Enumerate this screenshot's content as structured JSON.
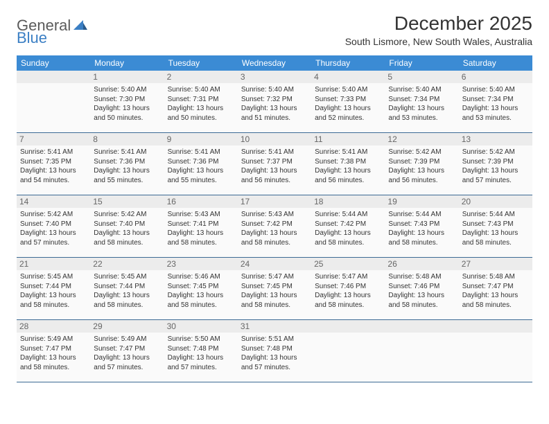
{
  "logo": {
    "word1": "General",
    "word2": "Blue"
  },
  "title": "December 2025",
  "subtitle": "South Lismore, New South Wales, Australia",
  "colors": {
    "header_bg": "#3b8bd4",
    "header_text": "#ffffff",
    "row_border": "#3b6a94",
    "daynum_bg": "#ececec",
    "daynum_text": "#666666",
    "logo_gray": "#5a5a5a",
    "logo_blue": "#3b7fc4"
  },
  "days_of_week": [
    "Sunday",
    "Monday",
    "Tuesday",
    "Wednesday",
    "Thursday",
    "Friday",
    "Saturday"
  ],
  "cells": [
    {
      "n": "",
      "sr": "",
      "ss": "",
      "dl": ""
    },
    {
      "n": "1",
      "sr": "Sunrise: 5:40 AM",
      "ss": "Sunset: 7:30 PM",
      "dl": "Daylight: 13 hours and 50 minutes."
    },
    {
      "n": "2",
      "sr": "Sunrise: 5:40 AM",
      "ss": "Sunset: 7:31 PM",
      "dl": "Daylight: 13 hours and 50 minutes."
    },
    {
      "n": "3",
      "sr": "Sunrise: 5:40 AM",
      "ss": "Sunset: 7:32 PM",
      "dl": "Daylight: 13 hours and 51 minutes."
    },
    {
      "n": "4",
      "sr": "Sunrise: 5:40 AM",
      "ss": "Sunset: 7:33 PM",
      "dl": "Daylight: 13 hours and 52 minutes."
    },
    {
      "n": "5",
      "sr": "Sunrise: 5:40 AM",
      "ss": "Sunset: 7:34 PM",
      "dl": "Daylight: 13 hours and 53 minutes."
    },
    {
      "n": "6",
      "sr": "Sunrise: 5:40 AM",
      "ss": "Sunset: 7:34 PM",
      "dl": "Daylight: 13 hours and 53 minutes."
    },
    {
      "n": "7",
      "sr": "Sunrise: 5:41 AM",
      "ss": "Sunset: 7:35 PM",
      "dl": "Daylight: 13 hours and 54 minutes."
    },
    {
      "n": "8",
      "sr": "Sunrise: 5:41 AM",
      "ss": "Sunset: 7:36 PM",
      "dl": "Daylight: 13 hours and 55 minutes."
    },
    {
      "n": "9",
      "sr": "Sunrise: 5:41 AM",
      "ss": "Sunset: 7:36 PM",
      "dl": "Daylight: 13 hours and 55 minutes."
    },
    {
      "n": "10",
      "sr": "Sunrise: 5:41 AM",
      "ss": "Sunset: 7:37 PM",
      "dl": "Daylight: 13 hours and 56 minutes."
    },
    {
      "n": "11",
      "sr": "Sunrise: 5:41 AM",
      "ss": "Sunset: 7:38 PM",
      "dl": "Daylight: 13 hours and 56 minutes."
    },
    {
      "n": "12",
      "sr": "Sunrise: 5:42 AM",
      "ss": "Sunset: 7:39 PM",
      "dl": "Daylight: 13 hours and 56 minutes."
    },
    {
      "n": "13",
      "sr": "Sunrise: 5:42 AM",
      "ss": "Sunset: 7:39 PM",
      "dl": "Daylight: 13 hours and 57 minutes."
    },
    {
      "n": "14",
      "sr": "Sunrise: 5:42 AM",
      "ss": "Sunset: 7:40 PM",
      "dl": "Daylight: 13 hours and 57 minutes."
    },
    {
      "n": "15",
      "sr": "Sunrise: 5:42 AM",
      "ss": "Sunset: 7:40 PM",
      "dl": "Daylight: 13 hours and 58 minutes."
    },
    {
      "n": "16",
      "sr": "Sunrise: 5:43 AM",
      "ss": "Sunset: 7:41 PM",
      "dl": "Daylight: 13 hours and 58 minutes."
    },
    {
      "n": "17",
      "sr": "Sunrise: 5:43 AM",
      "ss": "Sunset: 7:42 PM",
      "dl": "Daylight: 13 hours and 58 minutes."
    },
    {
      "n": "18",
      "sr": "Sunrise: 5:44 AM",
      "ss": "Sunset: 7:42 PM",
      "dl": "Daylight: 13 hours and 58 minutes."
    },
    {
      "n": "19",
      "sr": "Sunrise: 5:44 AM",
      "ss": "Sunset: 7:43 PM",
      "dl": "Daylight: 13 hours and 58 minutes."
    },
    {
      "n": "20",
      "sr": "Sunrise: 5:44 AM",
      "ss": "Sunset: 7:43 PM",
      "dl": "Daylight: 13 hours and 58 minutes."
    },
    {
      "n": "21",
      "sr": "Sunrise: 5:45 AM",
      "ss": "Sunset: 7:44 PM",
      "dl": "Daylight: 13 hours and 58 minutes."
    },
    {
      "n": "22",
      "sr": "Sunrise: 5:45 AM",
      "ss": "Sunset: 7:44 PM",
      "dl": "Daylight: 13 hours and 58 minutes."
    },
    {
      "n": "23",
      "sr": "Sunrise: 5:46 AM",
      "ss": "Sunset: 7:45 PM",
      "dl": "Daylight: 13 hours and 58 minutes."
    },
    {
      "n": "24",
      "sr": "Sunrise: 5:47 AM",
      "ss": "Sunset: 7:45 PM",
      "dl": "Daylight: 13 hours and 58 minutes."
    },
    {
      "n": "25",
      "sr": "Sunrise: 5:47 AM",
      "ss": "Sunset: 7:46 PM",
      "dl": "Daylight: 13 hours and 58 minutes."
    },
    {
      "n": "26",
      "sr": "Sunrise: 5:48 AM",
      "ss": "Sunset: 7:46 PM",
      "dl": "Daylight: 13 hours and 58 minutes."
    },
    {
      "n": "27",
      "sr": "Sunrise: 5:48 AM",
      "ss": "Sunset: 7:47 PM",
      "dl": "Daylight: 13 hours and 58 minutes."
    },
    {
      "n": "28",
      "sr": "Sunrise: 5:49 AM",
      "ss": "Sunset: 7:47 PM",
      "dl": "Daylight: 13 hours and 58 minutes."
    },
    {
      "n": "29",
      "sr": "Sunrise: 5:49 AM",
      "ss": "Sunset: 7:47 PM",
      "dl": "Daylight: 13 hours and 57 minutes."
    },
    {
      "n": "30",
      "sr": "Sunrise: 5:50 AM",
      "ss": "Sunset: 7:48 PM",
      "dl": "Daylight: 13 hours and 57 minutes."
    },
    {
      "n": "31",
      "sr": "Sunrise: 5:51 AM",
      "ss": "Sunset: 7:48 PM",
      "dl": "Daylight: 13 hours and 57 minutes."
    },
    {
      "n": "",
      "sr": "",
      "ss": "",
      "dl": ""
    },
    {
      "n": "",
      "sr": "",
      "ss": "",
      "dl": ""
    },
    {
      "n": "",
      "sr": "",
      "ss": "",
      "dl": ""
    }
  ]
}
